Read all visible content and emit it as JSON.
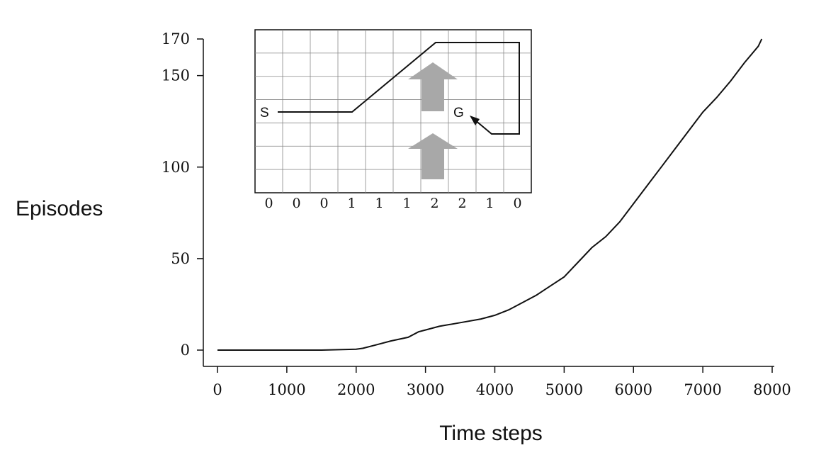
{
  "chart_data": {
    "type": "line",
    "xlabel": "Time steps",
    "ylabel": "Episodes",
    "xlim": [
      0,
      8000
    ],
    "ylim": [
      0,
      170
    ],
    "x_ticks": [
      0,
      1000,
      2000,
      3000,
      4000,
      5000,
      6000,
      7000,
      8000
    ],
    "y_ticks": [
      0,
      50,
      100,
      150,
      170
    ],
    "grid": false,
    "series": [
      {
        "x": [
          0,
          500,
          1000,
          1500,
          2000,
          2100,
          2300,
          2500,
          2750,
          2900,
          3000,
          3200,
          3500,
          3800,
          4000,
          4200,
          4400,
          4600,
          4800,
          5000,
          5200,
          5400,
          5600,
          5800,
          6000,
          6200,
          6400,
          6600,
          6800,
          7000,
          7200,
          7400,
          7600,
          7800,
          7850
        ],
        "y": [
          0,
          0,
          0,
          0,
          0.5,
          1,
          3,
          5,
          7,
          10,
          11,
          13,
          15,
          17,
          19,
          22,
          26,
          30,
          35,
          40,
          48,
          56,
          62,
          70,
          80,
          90,
          100,
          110,
          120,
          130,
          138,
          147,
          157,
          166,
          170
        ]
      }
    ],
    "inset": {
      "start_label": "S",
      "goal_label": "G",
      "grid_cols": 10,
      "grid_rows": 7,
      "column_wind": [
        "0",
        "0",
        "0",
        "1",
        "1",
        "1",
        "2",
        "2",
        "1",
        "0"
      ],
      "arrow_color": "#a8a8a8",
      "path_color": "#111111"
    }
  }
}
